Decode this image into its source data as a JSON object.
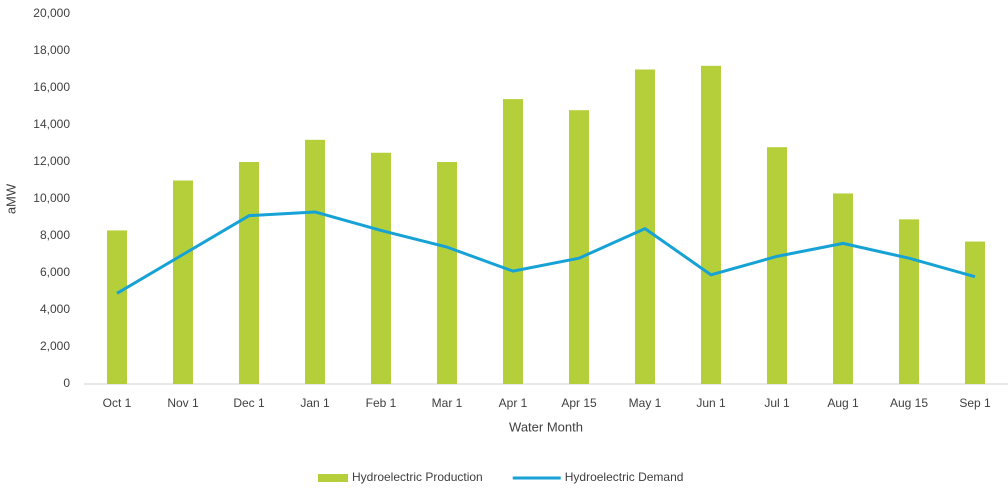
{
  "chart_data": {
    "type": "bar",
    "xlabel": "Water Month",
    "ylabel": "aMW",
    "categories": [
      "Oct 1",
      "Nov 1",
      "Dec 1",
      "Jan 1",
      "Feb 1",
      "Mar 1",
      "Apr 1",
      "Apr 15",
      "May 1",
      "Jun 1",
      "Jul 1",
      "Aug 1",
      "Aug 15",
      "Sep 1"
    ],
    "series": [
      {
        "name": "Hydroelectric Production",
        "type": "bar",
        "color": "#b5cf3a",
        "values": [
          8300,
          11000,
          12000,
          13200,
          12500,
          12000,
          15400,
          14800,
          17000,
          17200,
          12800,
          10300,
          8900,
          7700
        ]
      },
      {
        "name": "Hydroelectric Demand",
        "type": "line",
        "color": "#17a2d6",
        "values": [
          4900,
          7000,
          9100,
          9300,
          8300,
          7400,
          6100,
          6800,
          8400,
          5900,
          6900,
          7600,
          6800,
          5800
        ]
      }
    ],
    "ylim": [
      0,
      20000
    ],
    "yticks": [
      0,
      {
        "value": 2000,
        "label": "2,000"
      },
      {
        "value": 4000,
        "label": "4,000"
      },
      {
        "value": 6000,
        "label": "6,000"
      },
      {
        "value": 8000,
        "label": "8,000"
      },
      {
        "value": 10000,
        "label": "10,000"
      },
      {
        "value": 12000,
        "label": "12,000"
      },
      {
        "value": 14000,
        "label": "14,000"
      },
      {
        "value": 16000,
        "label": "16,000"
      },
      {
        "value": 18000,
        "label": "18,000"
      },
      {
        "value": 20000,
        "label": "20,000"
      }
    ],
    "grid": false,
    "legend": "bottom"
  }
}
